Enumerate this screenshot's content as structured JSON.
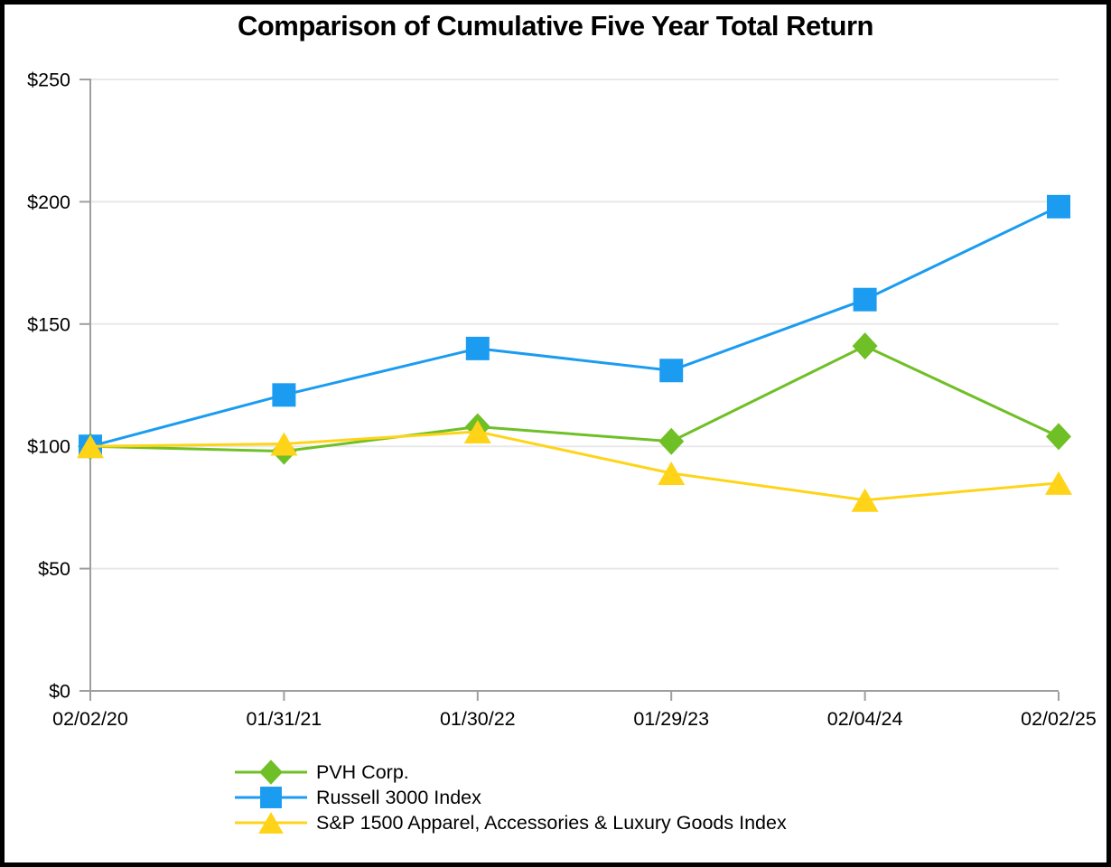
{
  "chart_data": {
    "type": "line",
    "title": "Comparison of Cumulative Five Year Total Return",
    "categories": [
      "02/02/20",
      "01/31/21",
      "01/30/22",
      "01/29/23",
      "02/04/24",
      "02/02/25"
    ],
    "series": [
      {
        "name": "PVH Corp.",
        "marker": "diamond",
        "color": "#6FBF26",
        "values": [
          100,
          98,
          108,
          102,
          141,
          104
        ]
      },
      {
        "name": "Russell 3000 Index",
        "marker": "square",
        "color": "#1B9CF0",
        "values": [
          100,
          121,
          140,
          131,
          160,
          198
        ]
      },
      {
        "name": "S&P 1500 Apparel, Accessories & Luxury Goods Index",
        "marker": "triangle",
        "color": "#FFD418",
        "values": [
          100,
          101,
          106,
          89,
          78,
          85
        ]
      }
    ],
    "y_axis": {
      "min": 0,
      "max": 250,
      "step": 50,
      "tick_labels": [
        "$0",
        "$50",
        "$100",
        "$150",
        "$200",
        "$250"
      ]
    },
    "x_axis": {
      "tick_labels": [
        "02/02/20",
        "01/31/21",
        "01/30/22",
        "01/29/23",
        "02/04/24",
        "02/02/25"
      ]
    },
    "legend_position": "bottom",
    "grid": "horizontal"
  },
  "colors": {
    "background": "#FFFFFF",
    "border": "#000000",
    "grid": "#E8E8E8",
    "axis": "#9E9E9E",
    "text": "#000000"
  }
}
